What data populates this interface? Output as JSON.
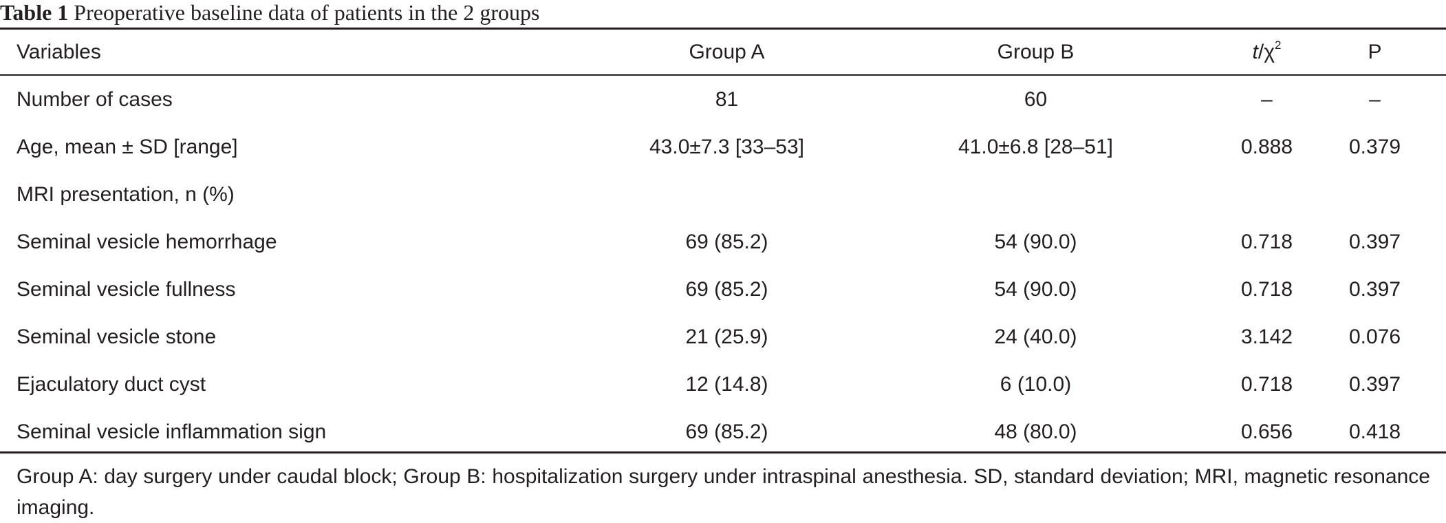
{
  "caption": {
    "label": "Table 1",
    "text": "Preoperative baseline data of patients in the 2 groups"
  },
  "table": {
    "headers": {
      "variables": "Variables",
      "group_a": "Group A",
      "group_b": "Group B",
      "stat_italic": "t",
      "stat_rest": "/χ",
      "stat_sup": "2",
      "p": "P"
    },
    "rows": [
      {
        "label": "Number of cases",
        "group_a": "81",
        "group_b": "60",
        "stat": "–",
        "p": "–"
      },
      {
        "label": "Age, mean ± SD [range]",
        "group_a": "43.0±7.3 [33–53]",
        "group_b": "41.0±6.8 [28–51]",
        "stat": "0.888",
        "p": "0.379"
      },
      {
        "label": "MRI presentation, n (%)",
        "group_a": "",
        "group_b": "",
        "stat": "",
        "p": ""
      },
      {
        "label": "Seminal vesicle hemorrhage",
        "group_a": "69 (85.2)",
        "group_b": "54 (90.0)",
        "stat": "0.718",
        "p": "0.397"
      },
      {
        "label": "Seminal vesicle fullness",
        "group_a": "69 (85.2)",
        "group_b": "54 (90.0)",
        "stat": "0.718",
        "p": "0.397"
      },
      {
        "label": "Seminal vesicle stone",
        "group_a": "21 (25.9)",
        "group_b": "24 (40.0)",
        "stat": "3.142",
        "p": "0.076"
      },
      {
        "label": "Ejaculatory duct cyst",
        "group_a": "12 (14.8)",
        "group_b": "6 (10.0)",
        "stat": "0.718",
        "p": "0.397"
      },
      {
        "label": "Seminal vesicle inflammation sign",
        "group_a": "69 (85.2)",
        "group_b": "48 (80.0)",
        "stat": "0.656",
        "p": "0.418"
      }
    ]
  },
  "footnote": "Group A: day surgery under caudal block; Group B: hospitalization surgery under intraspinal anesthesia. SD, standard deviation; MRI, magnetic resonance imaging."
}
